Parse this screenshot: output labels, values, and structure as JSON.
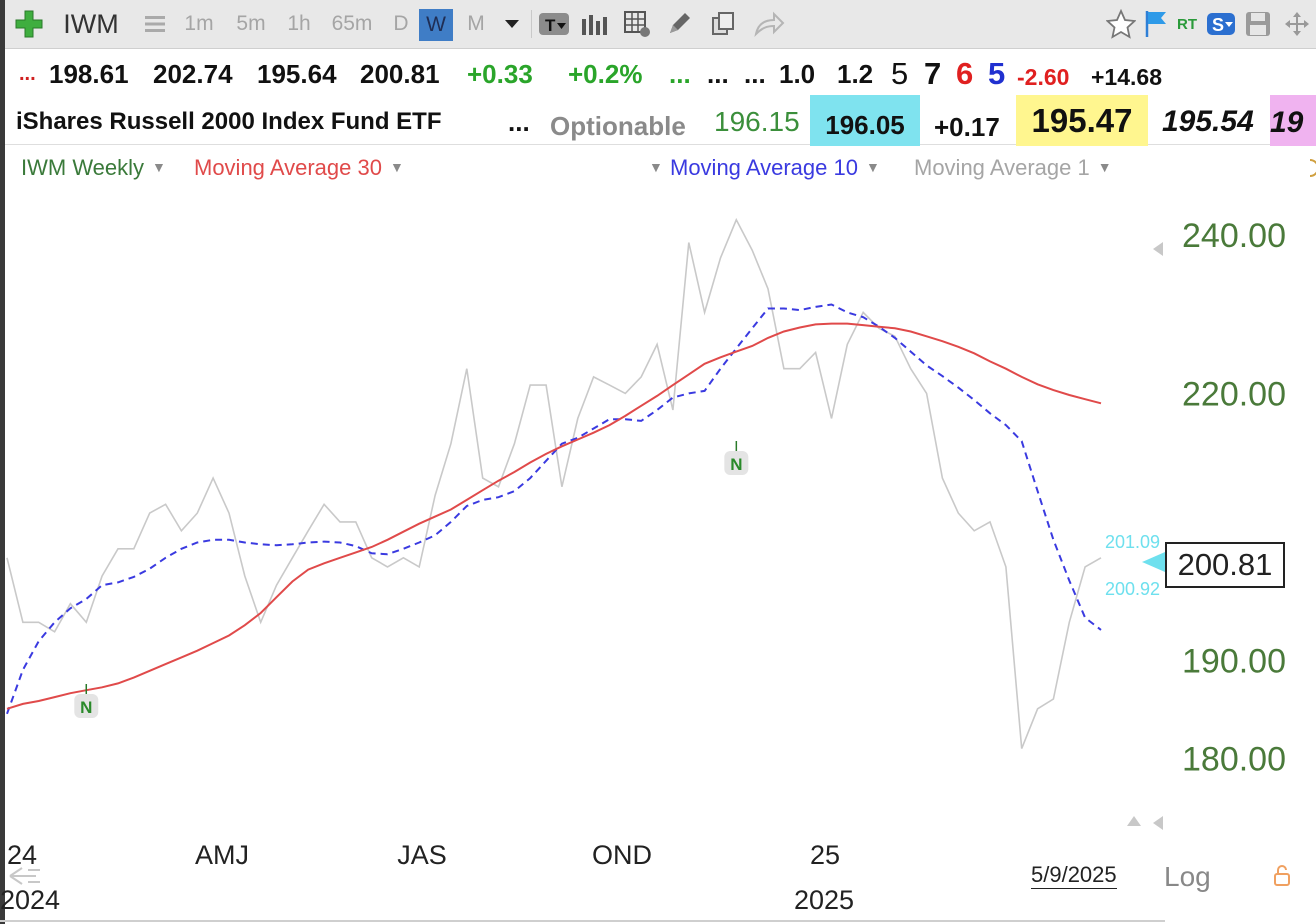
{
  "toolbar": {
    "symbol": "IWM",
    "timeframes": [
      "1m",
      "5m",
      "1h",
      "65m",
      "D",
      "W",
      "M"
    ],
    "selected_timeframe": "W",
    "rt_label": "RT",
    "s_label": "S"
  },
  "quote": {
    "lead": "...",
    "open": "198.61",
    "high": "202.74",
    "low": "195.64",
    "close": "200.81",
    "change": "+0.33",
    "change_pct": "+0.2%",
    "dots1": "...",
    "dots2": "...",
    "dots3": "...",
    "f1": "1.0",
    "f2": "1.2",
    "n1": "5",
    "n2": "7",
    "n3": "6",
    "n4": "5",
    "v1": "-2.60",
    "v2": "+14.68"
  },
  "info": {
    "name": "iShares Russell 2000 Index Fund ETF",
    "dots": "...",
    "optionable": "Optionable",
    "last": "196.15",
    "bid": "196.05",
    "bid_change": "+0.17",
    "ask": "195.47",
    "ask2": "195.54",
    "cut": "19"
  },
  "legend": {
    "series1": "IWM Weekly",
    "ma30": "Moving Average 30",
    "ma10": "Moving Average 10",
    "ma1": "Moving Average 1"
  },
  "colors": {
    "price": "#c9c9c9",
    "ma30": "#e04a4a",
    "ma10": "#3a3ae0",
    "axis_green": "#4a7a3a",
    "bid_bg": "#7fe3ef",
    "ask_bg": "#fff68f",
    "cut_bg": "#f0b3f0"
  },
  "chart_data": {
    "type": "line",
    "x_labels": [
      "24",
      "AMJ",
      "JAS",
      "OND",
      "25"
    ],
    "year_labels": [
      "2024",
      "2025"
    ],
    "y_ticks": [
      180,
      190,
      220,
      240
    ],
    "y_tick_labels": [
      "180.00",
      "190.00",
      "220.00",
      "240.00"
    ],
    "ylim": [
      175,
      246
    ],
    "scale": "log",
    "series": [
      {
        "name": "IWM Weekly",
        "values": [
          201,
          194,
          194,
          193,
          196,
          194,
          199,
          202,
          202,
          206,
          207,
          204,
          206,
          210,
          206,
          199,
          194,
          198,
          201,
          204,
          207,
          205,
          205,
          201,
          200,
          201,
          200,
          208,
          214,
          223,
          210,
          209,
          214,
          221,
          221,
          209,
          217,
          222,
          221,
          220,
          222,
          226,
          218,
          239,
          230,
          237,
          242,
          238,
          233,
          223,
          223,
          225,
          217,
          226,
          230,
          228,
          227,
          223,
          220,
          210,
          206,
          204,
          205,
          200,
          181,
          185,
          186,
          194,
          200,
          201
        ]
      },
      {
        "name": "Moving Average 10",
        "values": [
          184.5,
          189,
          192,
          194,
          195.5,
          196.5,
          198,
          198.3,
          198.9,
          199.8,
          201,
          202,
          202.7,
          203,
          203,
          202.7,
          202.5,
          202.4,
          202.5,
          202.7,
          202.8,
          202.7,
          202.3,
          201.5,
          201.4,
          202,
          202.7,
          203.5,
          205,
          206.8,
          207.5,
          207.8,
          208.5,
          210,
          212,
          214,
          214.7,
          215.8,
          216.9,
          216.9,
          216.7,
          218,
          219.5,
          220,
          220.3,
          223,
          225.5,
          228,
          230.5,
          230.5,
          230.3,
          230.7,
          231,
          230,
          229.4,
          228.2,
          226.8,
          225.1,
          223.4,
          222.1,
          220.7,
          219.2,
          217.6,
          216.2,
          214.3,
          208.5,
          203,
          198.5,
          194.5,
          193.2
        ]
      },
      {
        "name": "Moving Average 30",
        "values": [
          185,
          185.5,
          185.8,
          186.2,
          186.6,
          186.9,
          187.2,
          187.6,
          188.2,
          188.9,
          189.6,
          190.3,
          191,
          191.8,
          192.6,
          193.7,
          195,
          196.7,
          198.4,
          199.7,
          200.4,
          201,
          201.6,
          202.2,
          203,
          203.9,
          204.8,
          205.6,
          206.4,
          207.5,
          208.6,
          209.7,
          210.7,
          211.8,
          212.8,
          213.7,
          214.5,
          215.3,
          216.2,
          217.3,
          218.5,
          219.7,
          221,
          222.3,
          223.6,
          224.4,
          225.1,
          225.8,
          226.8,
          227.6,
          228.1,
          228.5,
          228.6,
          228.6,
          228.4,
          228.2,
          228,
          227.6,
          227,
          226.4,
          225.7,
          224.9,
          223.9,
          223,
          222,
          221.1,
          220.4,
          219.8,
          219.3,
          218.8
        ]
      }
    ],
    "markers": [
      {
        "label": "N",
        "index": 5
      },
      {
        "label": "N",
        "index": 46
      }
    ],
    "end_labels": [
      "201.09",
      "200.92"
    ],
    "last_price": "200.81",
    "date_label": "5/9/2025",
    "log_label": "Log"
  }
}
